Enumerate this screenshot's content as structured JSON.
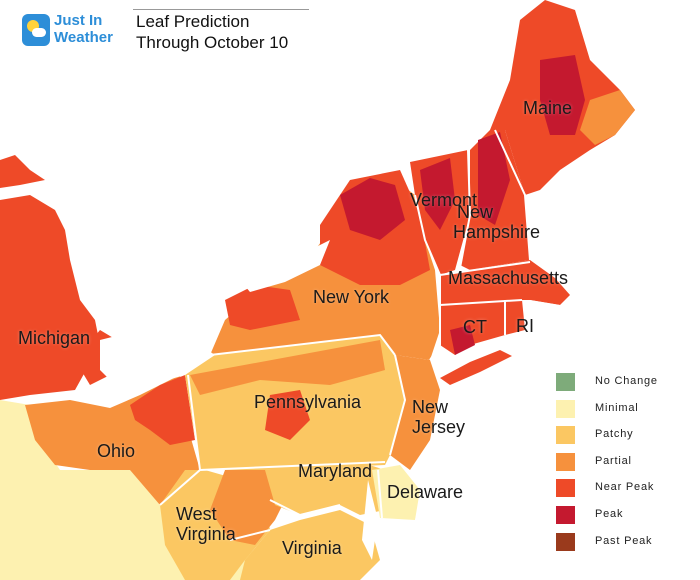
{
  "header": {
    "logo_line1": "Just In",
    "logo_line2": "Weather",
    "title_line1": "Leaf Prediction",
    "title_line2": "Through October 10"
  },
  "colors": {
    "no_change": "#7eab7a",
    "minimal": "#fdf1b0",
    "patchy": "#fbc762",
    "partial": "#f6913d",
    "near_peak": "#ee4a28",
    "peak": "#c4192f",
    "past_peak": "#9a3a1c",
    "water": "#ffffff",
    "border": "#ffffff",
    "logo_blue": "#2d8ed8"
  },
  "states": [
    {
      "id": "maine",
      "label": "Maine"
    },
    {
      "id": "vermont",
      "label": "Vermont"
    },
    {
      "id": "new-hampshire",
      "label": "New\nHampshire"
    },
    {
      "id": "massachusetts",
      "label": "Massachusetts"
    },
    {
      "id": "ct",
      "label": "CT"
    },
    {
      "id": "ri",
      "label": "RI"
    },
    {
      "id": "new-york",
      "label": "New York"
    },
    {
      "id": "michigan",
      "label": "Michigan"
    },
    {
      "id": "pennsylvania",
      "label": "Pennsylvania"
    },
    {
      "id": "new-jersey",
      "label": "New\nJersey"
    },
    {
      "id": "ohio",
      "label": "Ohio"
    },
    {
      "id": "maryland",
      "label": "Maryland"
    },
    {
      "id": "delaware",
      "label": "Delaware"
    },
    {
      "id": "west-virginia",
      "label": "West\nVirginia"
    },
    {
      "id": "virginia",
      "label": "Virginia"
    }
  ],
  "legend": [
    {
      "key": "no_change",
      "label": "No Change"
    },
    {
      "key": "minimal",
      "label": "Minimal"
    },
    {
      "key": "patchy",
      "label": "Patchy"
    },
    {
      "key": "partial",
      "label": "Partial"
    },
    {
      "key": "near_peak",
      "label": "Near Peak"
    },
    {
      "key": "peak",
      "label": "Peak"
    },
    {
      "key": "past_peak",
      "label": "Past Peak"
    }
  ]
}
